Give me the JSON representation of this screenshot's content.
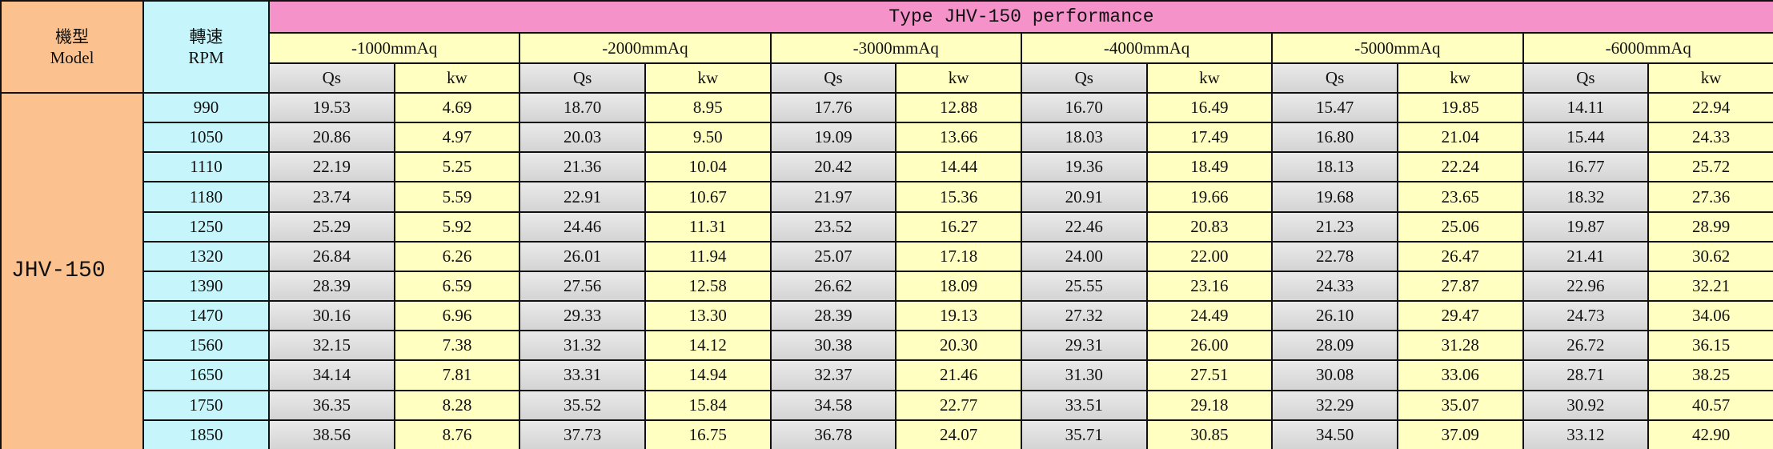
{
  "header": {
    "model_zh": "機型",
    "model_en": "Model",
    "rpm_zh": "轉速",
    "rpm_en": "RPM",
    "title": "Type JHV-150 performance",
    "pressures": [
      "-1000mmAq",
      "-2000mmAq",
      "-3000mmAq",
      "-4000mmAq",
      "-5000mmAq",
      "-6000mmAq"
    ],
    "sub": [
      "Qs",
      "kw"
    ]
  },
  "table": {
    "model": "JHV-150",
    "rows": [
      {
        "rpm": "990",
        "values": [
          "19.53",
          "4.69",
          "18.70",
          "8.95",
          "17.76",
          "12.88",
          "16.70",
          "16.49",
          "15.47",
          "19.85",
          "14.11",
          "22.94"
        ]
      },
      {
        "rpm": "1050",
        "values": [
          "20.86",
          "4.97",
          "20.03",
          "9.50",
          "19.09",
          "13.66",
          "18.03",
          "17.49",
          "16.80",
          "21.04",
          "15.44",
          "24.33"
        ]
      },
      {
        "rpm": "1110",
        "values": [
          "22.19",
          "5.25",
          "21.36",
          "10.04",
          "20.42",
          "14.44",
          "19.36",
          "18.49",
          "18.13",
          "22.24",
          "16.77",
          "25.72"
        ]
      },
      {
        "rpm": "1180",
        "values": [
          "23.74",
          "5.59",
          "22.91",
          "10.67",
          "21.97",
          "15.36",
          "20.91",
          "19.66",
          "19.68",
          "23.65",
          "18.32",
          "27.36"
        ]
      },
      {
        "rpm": "1250",
        "values": [
          "25.29",
          "5.92",
          "24.46",
          "11.31",
          "23.52",
          "16.27",
          "22.46",
          "20.83",
          "21.23",
          "25.06",
          "19.87",
          "28.99"
        ]
      },
      {
        "rpm": "1320",
        "values": [
          "26.84",
          "6.26",
          "26.01",
          "11.94",
          "25.07",
          "17.18",
          "24.00",
          "22.00",
          "22.78",
          "26.47",
          "21.41",
          "30.62"
        ]
      },
      {
        "rpm": "1390",
        "values": [
          "28.39",
          "6.59",
          "27.56",
          "12.58",
          "26.62",
          "18.09",
          "25.55",
          "23.16",
          "24.33",
          "27.87",
          "22.96",
          "32.21"
        ]
      },
      {
        "rpm": "1470",
        "values": [
          "30.16",
          "6.96",
          "29.33",
          "13.30",
          "28.39",
          "19.13",
          "27.32",
          "24.49",
          "26.10",
          "29.47",
          "24.73",
          "34.06"
        ]
      },
      {
        "rpm": "1560",
        "values": [
          "32.15",
          "7.38",
          "31.32",
          "14.12",
          "30.38",
          "20.30",
          "29.31",
          "26.00",
          "28.09",
          "31.28",
          "26.72",
          "36.15"
        ]
      },
      {
        "rpm": "1650",
        "values": [
          "34.14",
          "7.81",
          "33.31",
          "14.94",
          "32.37",
          "21.46",
          "31.30",
          "27.51",
          "30.08",
          "33.06",
          "28.71",
          "38.25"
        ]
      },
      {
        "rpm": "1750",
        "values": [
          "36.35",
          "8.28",
          "35.52",
          "15.84",
          "34.58",
          "22.77",
          "33.51",
          "29.18",
          "32.29",
          "35.07",
          "30.92",
          "40.57"
        ]
      },
      {
        "rpm": "1850",
        "values": [
          "38.56",
          "8.76",
          "37.73",
          "16.75",
          "36.78",
          "24.07",
          "35.71",
          "30.85",
          "34.50",
          "37.09",
          "33.12",
          "42.90"
        ]
      }
    ]
  }
}
